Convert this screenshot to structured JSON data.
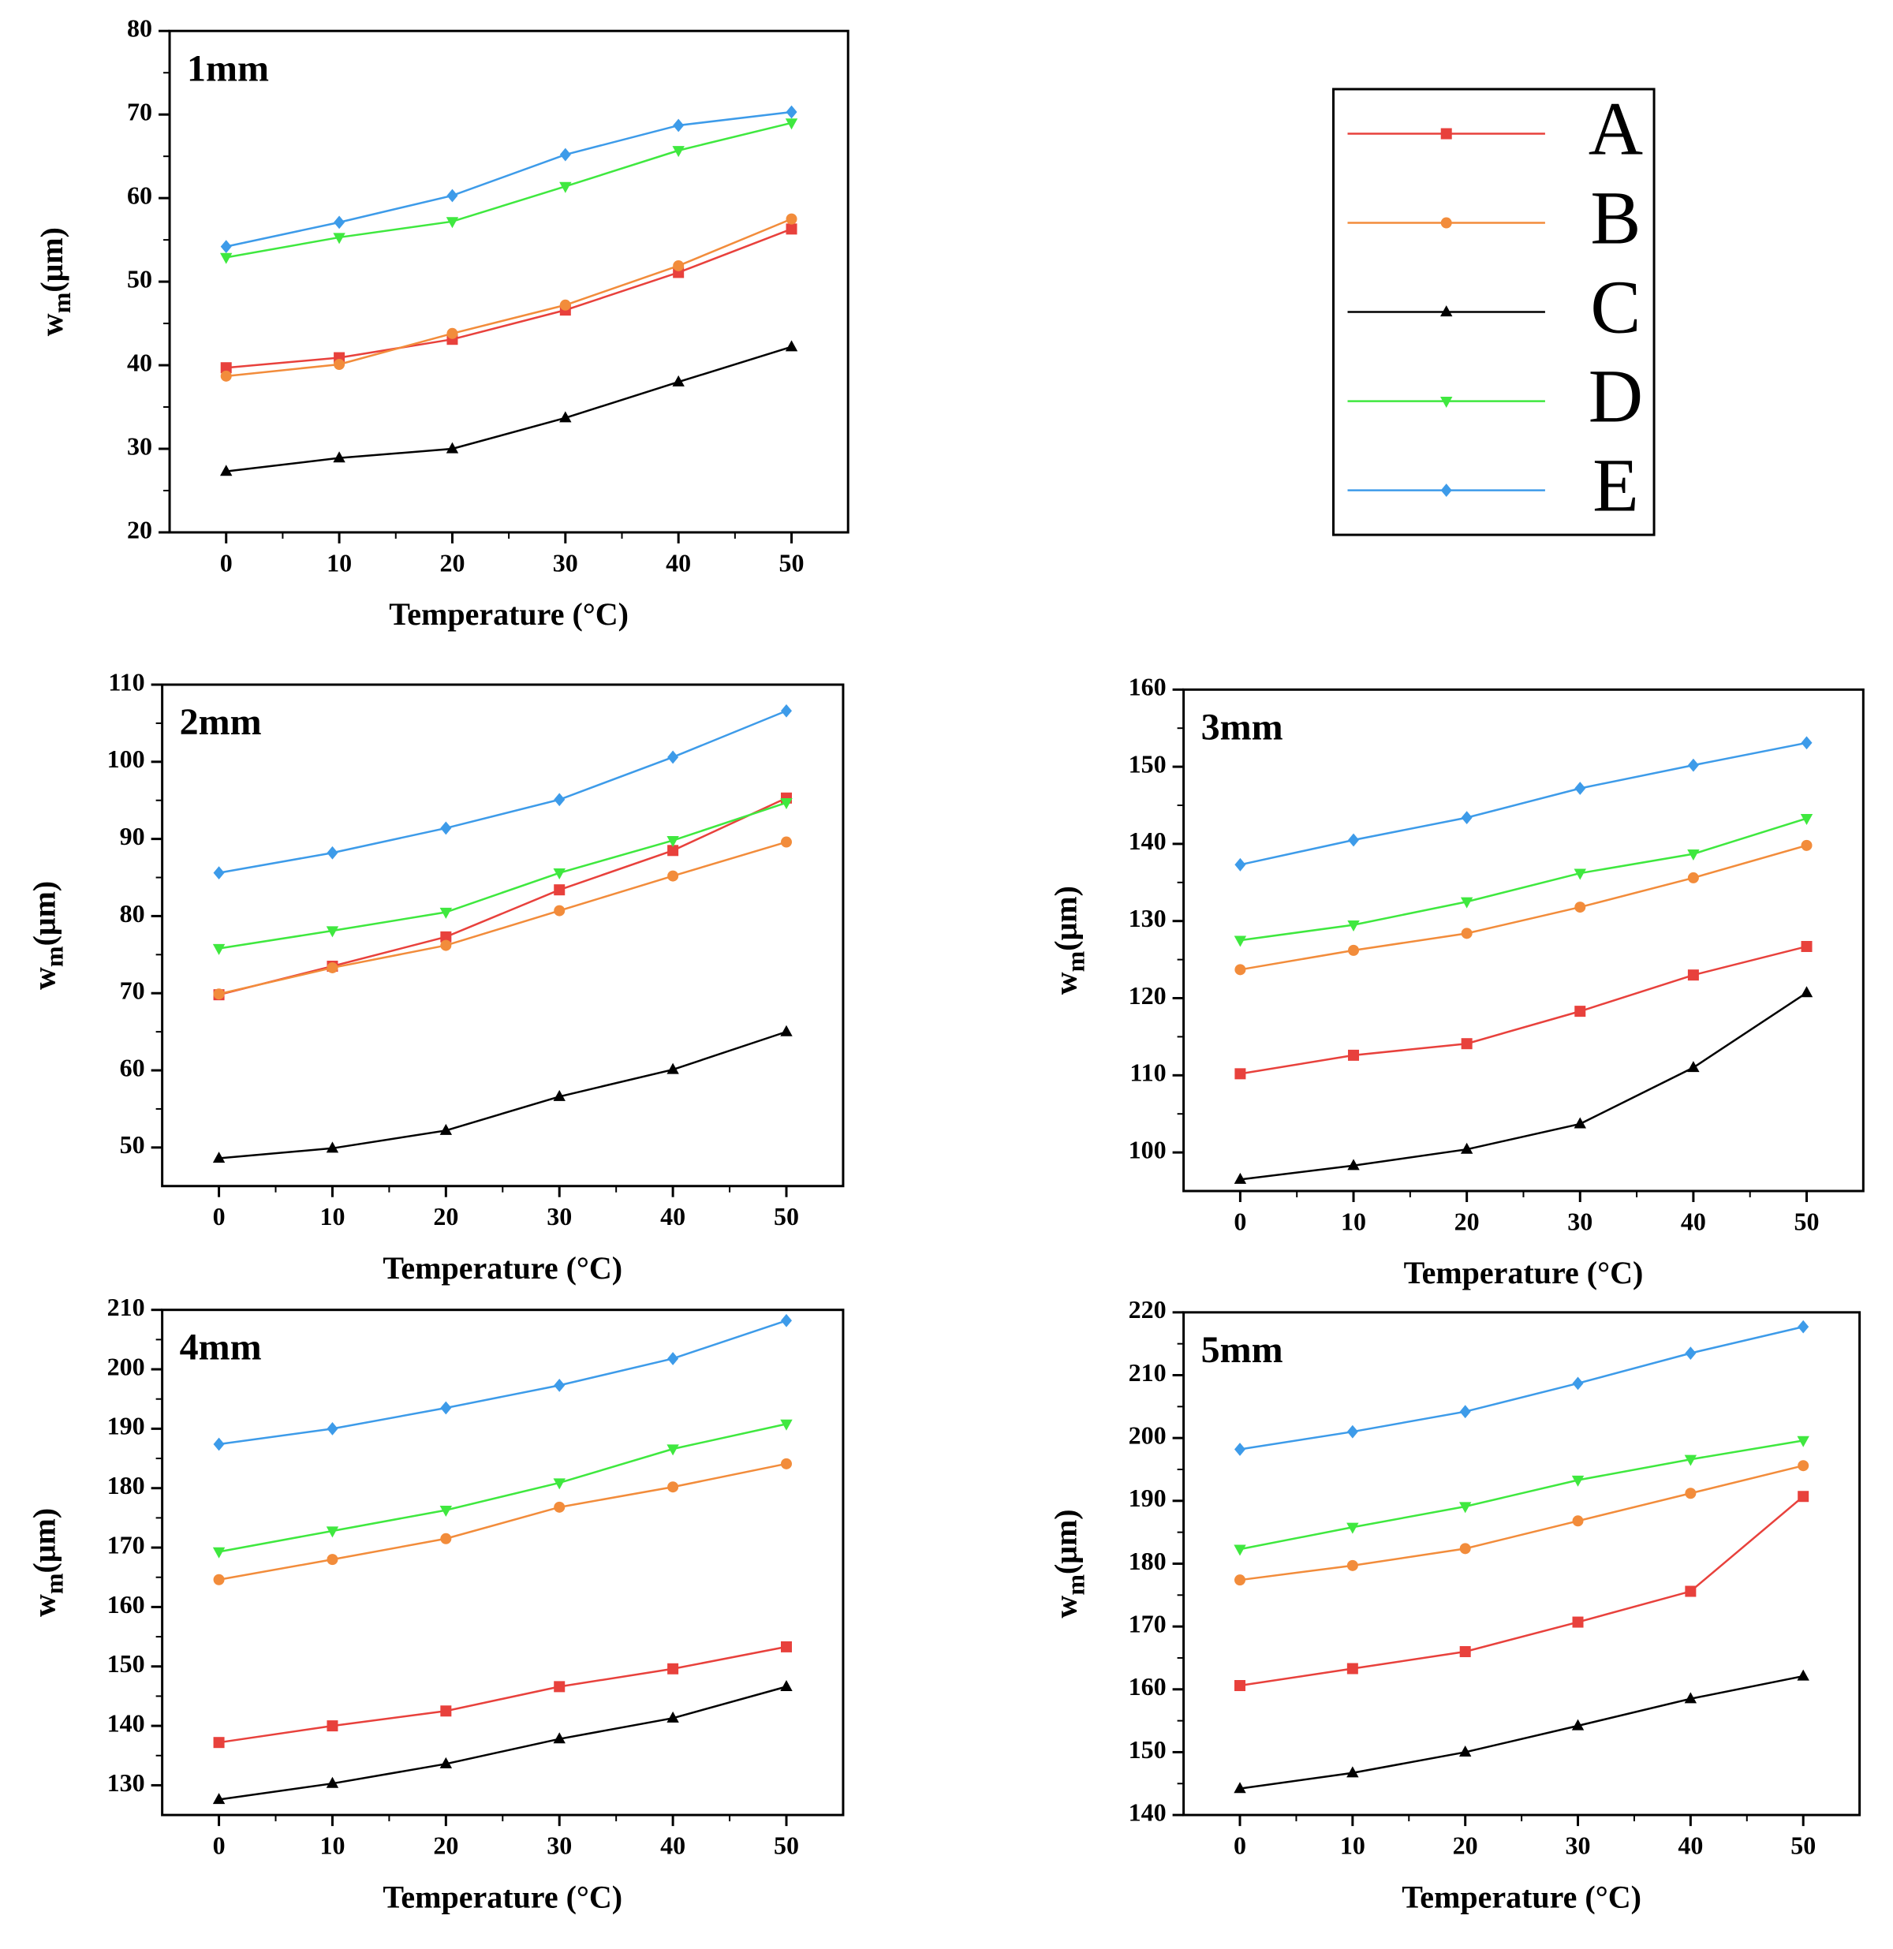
{
  "legend": {
    "series": [
      {
        "name": "A",
        "color": "#e8413c",
        "marker": "square"
      },
      {
        "name": "B",
        "color": "#f28c3b",
        "marker": "circle"
      },
      {
        "name": "C",
        "color": "#000000",
        "marker": "triangle-up"
      },
      {
        "name": "D",
        "color": "#3fe83f",
        "marker": "triangle-down"
      },
      {
        "name": "E",
        "color": "#3d9be9",
        "marker": "diamond"
      }
    ]
  },
  "chart_data": [
    {
      "type": "line",
      "label": "1mm",
      "xlabel": "Temperature (°C)",
      "ylabel": {
        "base": "w",
        "sub": "m",
        "unit": "(μm)"
      },
      "x": [
        0,
        10,
        20,
        30,
        40,
        50
      ],
      "xlim": [
        -5,
        55
      ],
      "xticks": [
        0,
        10,
        20,
        30,
        40,
        50
      ],
      "ylim": [
        20,
        80
      ],
      "yticks": [
        20,
        30,
        40,
        50,
        60,
        70,
        80
      ],
      "series": [
        {
          "values": [
            39.7,
            40.9,
            43.1,
            46.6,
            51.1,
            56.3
          ]
        },
        {
          "values": [
            38.7,
            40.1,
            43.8,
            47.2,
            51.9,
            57.5
          ]
        },
        {
          "values": [
            27.3,
            28.9,
            30.0,
            33.7,
            38.0,
            42.2
          ]
        },
        {
          "values": [
            52.9,
            55.3,
            57.2,
            61.4,
            65.7,
            69.0
          ]
        },
        {
          "values": [
            54.2,
            57.1,
            60.3,
            65.2,
            68.7,
            70.3
          ]
        }
      ]
    },
    {
      "type": "line",
      "label": "2mm",
      "xlabel": "Temperature (°C)",
      "ylabel": {
        "base": "w",
        "sub": "m",
        "unit": "(μm)"
      },
      "x": [
        0,
        10,
        20,
        30,
        40,
        50
      ],
      "xlim": [
        -5,
        55
      ],
      "xticks": [
        0,
        10,
        20,
        30,
        40,
        50
      ],
      "ylim": [
        45,
        110
      ],
      "yticks": [
        50,
        60,
        70,
        80,
        90,
        100,
        110
      ],
      "series": [
        {
          "values": [
            69.8,
            73.5,
            77.3,
            83.4,
            88.5,
            95.3
          ]
        },
        {
          "values": [
            69.9,
            73.3,
            76.2,
            80.7,
            85.2,
            89.6
          ]
        },
        {
          "values": [
            48.6,
            49.9,
            52.2,
            56.6,
            60.1,
            65.0
          ]
        },
        {
          "values": [
            75.8,
            78.1,
            80.5,
            85.6,
            89.8,
            94.7
          ]
        },
        {
          "values": [
            85.6,
            88.2,
            91.4,
            95.1,
            100.6,
            106.6
          ]
        }
      ]
    },
    {
      "type": "line",
      "label": "3mm",
      "xlabel": "Temperature (°C)",
      "ylabel": {
        "base": "w",
        "sub": "m",
        "unit": "(μm)"
      },
      "x": [
        0,
        10,
        20,
        30,
        40,
        50
      ],
      "xlim": [
        -5,
        55
      ],
      "xticks": [
        0,
        10,
        20,
        30,
        40,
        50
      ],
      "ylim": [
        95,
        160
      ],
      "yticks": [
        100,
        110,
        120,
        130,
        140,
        150,
        160
      ],
      "series": [
        {
          "values": [
            110.2,
            112.6,
            114.1,
            118.3,
            123.0,
            126.7
          ]
        },
        {
          "values": [
            123.7,
            126.2,
            128.4,
            131.8,
            135.6,
            139.8
          ]
        },
        {
          "values": [
            96.5,
            98.3,
            100.4,
            103.7,
            111.0,
            120.7
          ]
        },
        {
          "values": [
            127.5,
            129.5,
            132.5,
            136.2,
            138.7,
            143.3
          ]
        },
        {
          "values": [
            137.3,
            140.5,
            143.4,
            147.2,
            150.2,
            153.1
          ]
        }
      ]
    },
    {
      "type": "line",
      "label": "4mm",
      "xlabel": "Temperature (°C)",
      "ylabel": {
        "base": "w",
        "sub": "m",
        "unit": "(μm)"
      },
      "x": [
        0,
        10,
        20,
        30,
        40,
        50
      ],
      "xlim": [
        -5,
        55
      ],
      "xticks": [
        0,
        10,
        20,
        30,
        40,
        50
      ],
      "ylim": [
        125,
        210
      ],
      "yticks": [
        130,
        140,
        150,
        160,
        170,
        180,
        190,
        200,
        210
      ],
      "series": [
        {
          "values": [
            137.2,
            140.0,
            142.5,
            146.6,
            149.6,
            153.3
          ]
        },
        {
          "values": [
            164.6,
            168.0,
            171.5,
            176.8,
            180.2,
            184.1
          ]
        },
        {
          "values": [
            127.6,
            130.3,
            133.6,
            137.8,
            141.3,
            146.6
          ]
        },
        {
          "values": [
            169.3,
            172.8,
            176.3,
            180.9,
            186.6,
            190.8
          ]
        },
        {
          "values": [
            187.4,
            190.0,
            193.5,
            197.3,
            201.8,
            208.2
          ]
        }
      ]
    },
    {
      "type": "line",
      "label": "5mm",
      "xlabel": "Temperature (°C)",
      "ylabel": {
        "base": "w",
        "sub": "m",
        "unit": "(μm)"
      },
      "x": [
        0,
        10,
        20,
        30,
        40,
        50
      ],
      "xlim": [
        -5,
        55
      ],
      "xticks": [
        0,
        10,
        20,
        30,
        40,
        50
      ],
      "ylim": [
        140,
        220
      ],
      "yticks": [
        140,
        150,
        160,
        170,
        180,
        190,
        200,
        210,
        220
      ],
      "series": [
        {
          "values": [
            160.6,
            163.3,
            166.0,
            170.7,
            175.6,
            190.7
          ]
        },
        {
          "values": [
            177.4,
            179.7,
            182.4,
            186.8,
            191.2,
            195.6
          ]
        },
        {
          "values": [
            144.2,
            146.7,
            150.0,
            154.2,
            158.5,
            162.1
          ]
        },
        {
          "values": [
            182.3,
            185.8,
            189.1,
            193.3,
            196.6,
            199.6
          ]
        },
        {
          "values": [
            198.2,
            201.0,
            204.2,
            208.7,
            213.5,
            217.7
          ]
        }
      ]
    }
  ]
}
